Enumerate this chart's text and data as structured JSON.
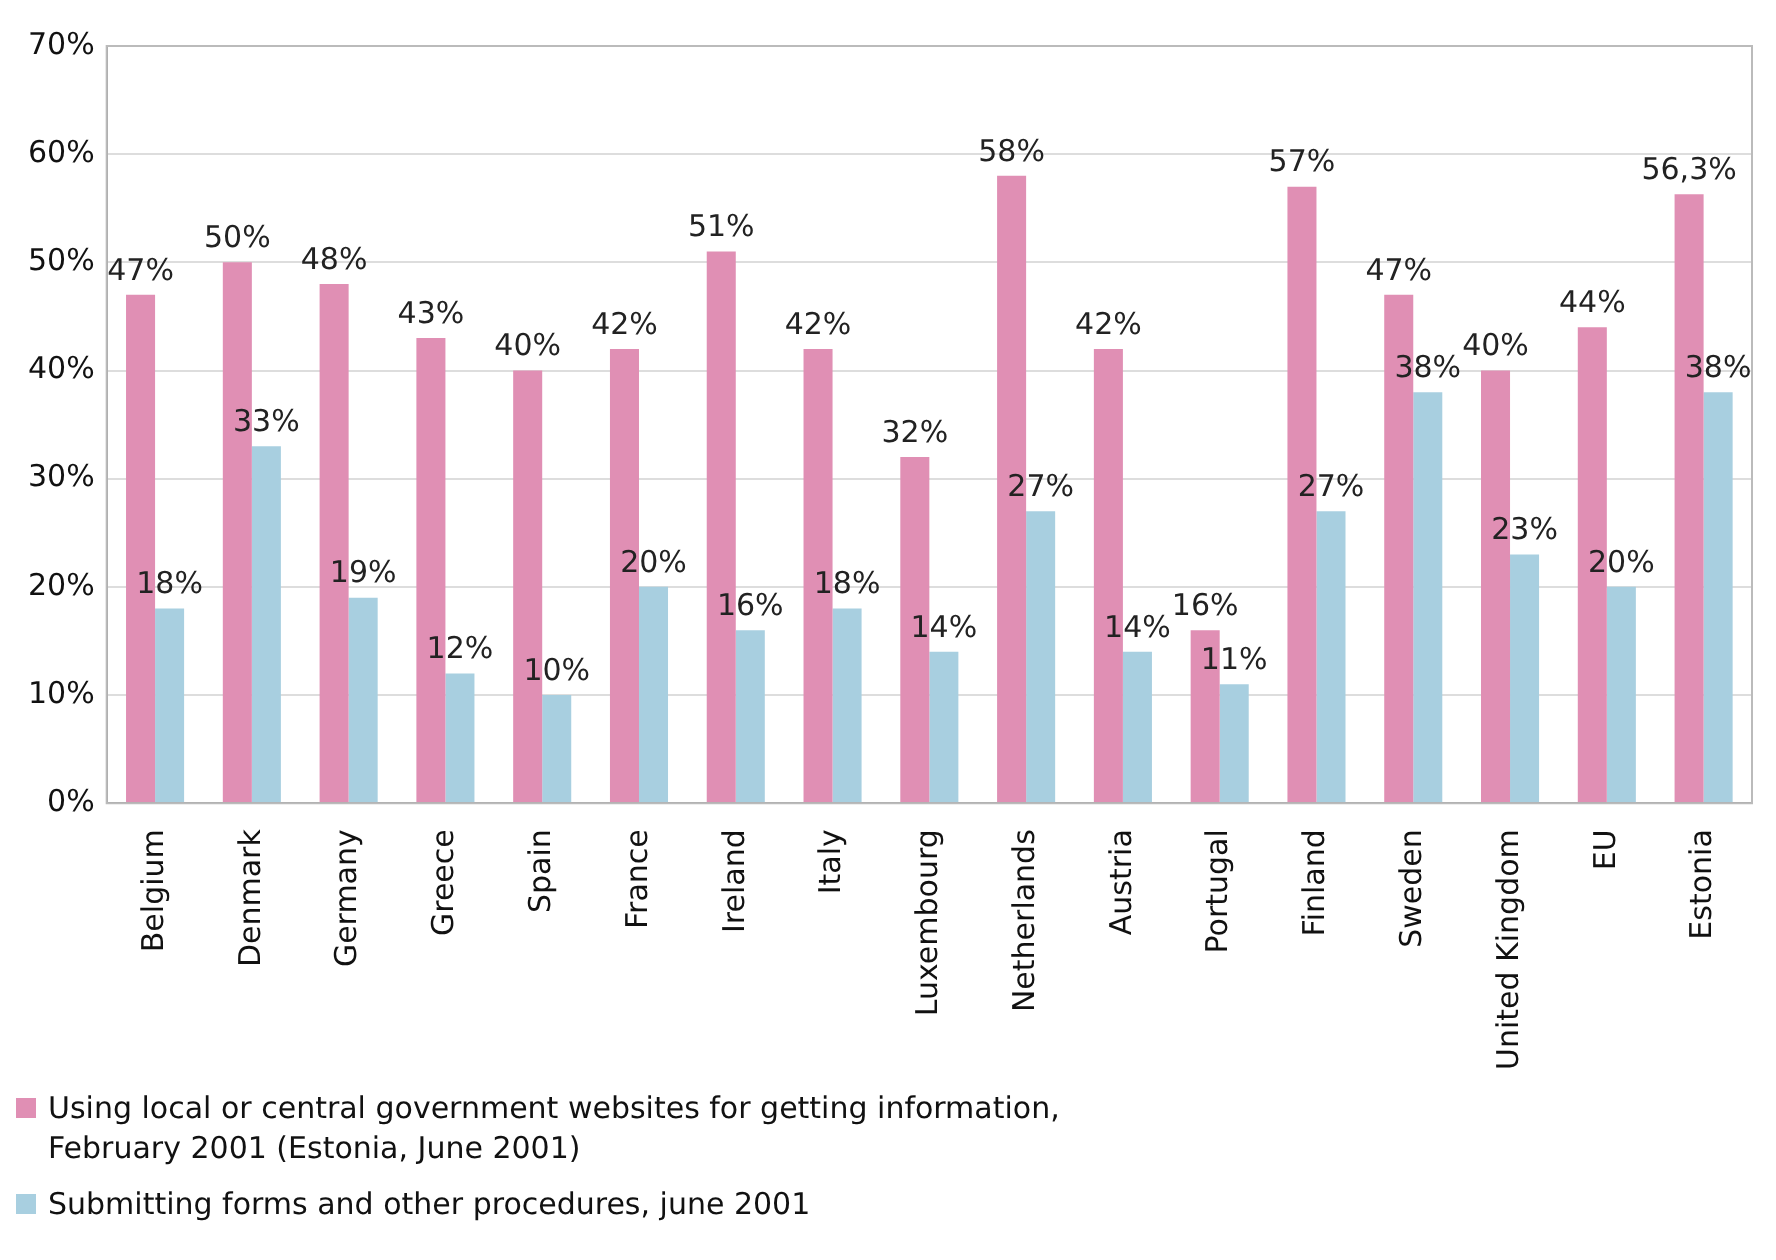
{
  "chart_data": {
    "type": "bar",
    "categories": [
      "Belgium",
      "Denmark",
      "Germany",
      "Greece",
      "Spain",
      "France",
      "Ireland",
      "Italy",
      "Luxembourg",
      "Netherlands",
      "Austria",
      "Portugal",
      "Finland",
      "Sweden",
      "United Kingdom",
      "EU",
      "Estonia"
    ],
    "series": [
      {
        "name": "Using local or central government websites for getting information, February 2001 (Estonia, June 2001)",
        "color": "#e08fb4",
        "values": [
          47,
          50,
          48,
          43,
          40,
          42,
          51,
          42,
          32,
          58,
          42,
          16,
          57,
          47,
          40,
          44,
          56.3
        ],
        "value_labels": [
          "47%",
          "50%",
          "48%",
          "43%",
          "40%",
          "42%",
          "51%",
          "42%",
          "32%",
          "58%",
          "42%",
          "16%",
          "57%",
          "47%",
          "40%",
          "44%",
          "56,3%"
        ]
      },
      {
        "name": "Submitting forms and other procedures, june 2001",
        "color": "#a8cfe0",
        "values": [
          18,
          33,
          19,
          12,
          10,
          20,
          16,
          18,
          14,
          27,
          14,
          11,
          27,
          38,
          23,
          20,
          38
        ],
        "value_labels": [
          "18%",
          "33%",
          "19%",
          "12%",
          "10%",
          "20%",
          "16%",
          "18%",
          "14%",
          "27%",
          "14%",
          "11%",
          "27%",
          "38%",
          "23%",
          "20%",
          "38%"
        ]
      }
    ],
    "ylim": [
      0,
      70
    ],
    "yticks": [
      {
        "value": 0,
        "label": "0%"
      },
      {
        "value": 10,
        "label": "10%"
      },
      {
        "value": 20,
        "label": "20%"
      },
      {
        "value": 30,
        "label": "30%"
      },
      {
        "value": 40,
        "label": "40%"
      },
      {
        "value": 50,
        "label": "50%"
      },
      {
        "value": 60,
        "label": "60%"
      },
      {
        "value": 70,
        "label": "70%"
      }
    ],
    "grid": "y",
    "legend": "bottom left"
  }
}
